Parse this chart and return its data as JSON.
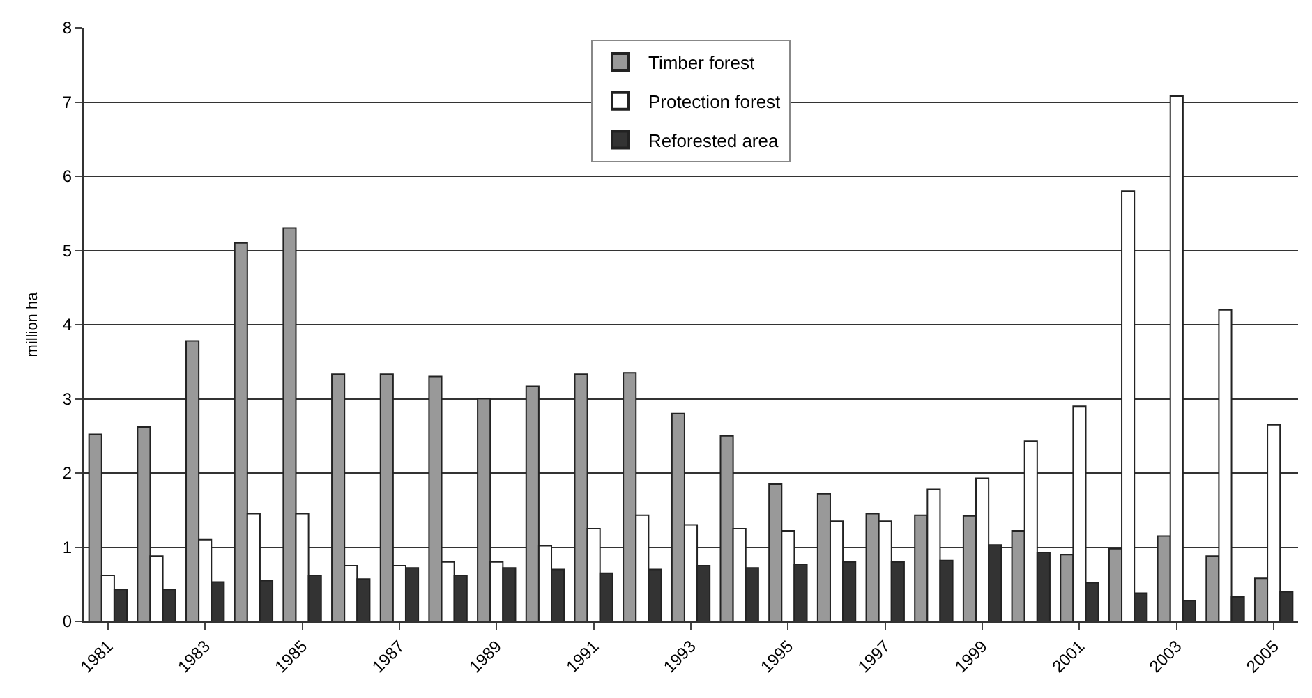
{
  "chart_data": {
    "type": "bar",
    "ylabel": "million ha",
    "categories": [
      "1981",
      null,
      "1983",
      null,
      "1985",
      null,
      "1987",
      null,
      "1989",
      null,
      "1991",
      null,
      "1993",
      null,
      "1995",
      null,
      "1997",
      null,
      "1999",
      null,
      "2001",
      null,
      "2003",
      null,
      "2005"
    ],
    "series": [
      {
        "name": "Timber forest",
        "color": "#999999",
        "values": [
          2.52,
          2.62,
          3.78,
          5.1,
          5.3,
          3.33,
          3.33,
          3.3,
          3.0,
          3.17,
          3.33,
          3.35,
          2.8,
          2.5,
          1.85,
          1.72,
          1.45,
          1.43,
          1.42,
          1.22,
          0.9,
          0.98,
          1.15,
          0.88,
          0.58
        ]
      },
      {
        "name": "Protection forest",
        "color": "#ffffff",
        "values": [
          0.62,
          0.88,
          1.1,
          1.45,
          1.45,
          0.75,
          0.75,
          0.8,
          0.8,
          1.02,
          1.25,
          1.43,
          1.3,
          1.25,
          1.22,
          1.35,
          1.35,
          1.78,
          1.93,
          2.43,
          2.9,
          5.8,
          7.08,
          4.2,
          2.65
        ]
      },
      {
        "name": "Reforested area",
        "color": "#333333",
        "values": [
          0.43,
          0.43,
          0.53,
          0.55,
          0.62,
          0.57,
          0.72,
          0.62,
          0.72,
          0.7,
          0.65,
          0.7,
          0.75,
          0.72,
          0.77,
          0.8,
          0.8,
          0.82,
          1.03,
          0.93,
          0.52,
          0.38,
          0.28,
          0.33,
          0.4
        ]
      }
    ],
    "ylim": [
      0,
      8
    ],
    "yticks": [
      0,
      1,
      2,
      3,
      4,
      5,
      6,
      7,
      8
    ],
    "grid": "y",
    "legend": "top"
  }
}
